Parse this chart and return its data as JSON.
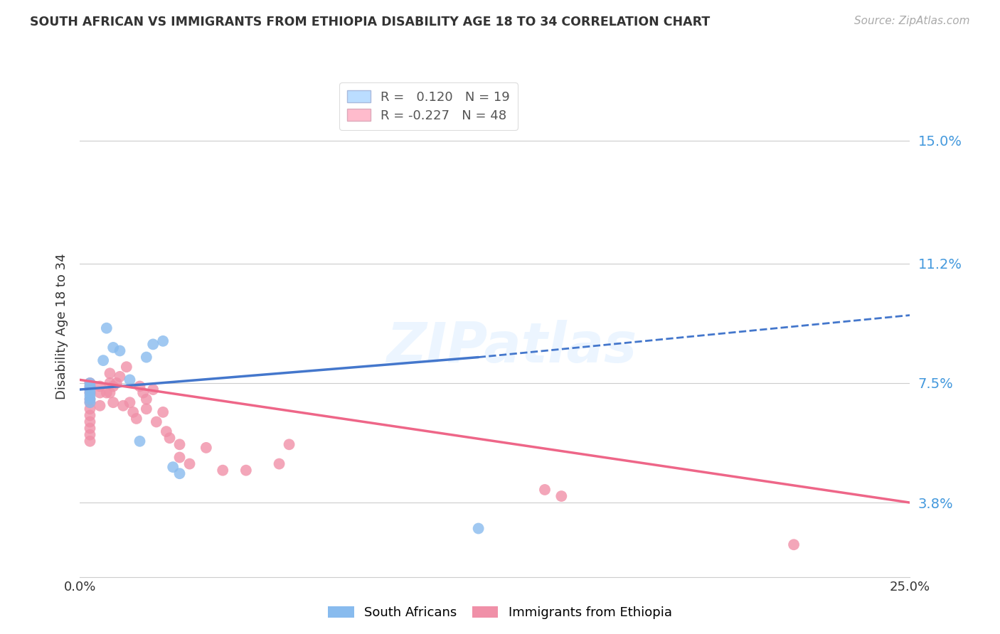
{
  "title": "SOUTH AFRICAN VS IMMIGRANTS FROM ETHIOPIA DISABILITY AGE 18 TO 34 CORRELATION CHART",
  "source": "Source: ZipAtlas.com",
  "ylabel": "Disability Age 18 to 34",
  "ytick_labels": [
    "3.8%",
    "7.5%",
    "11.2%",
    "15.0%"
  ],
  "ytick_values": [
    0.038,
    0.075,
    0.112,
    0.15
  ],
  "xlim": [
    0.0,
    0.25
  ],
  "ylim": [
    0.015,
    0.17
  ],
  "blue_color": "#88bbee",
  "pink_color": "#f090a8",
  "blue_line_color": "#4477cc",
  "pink_line_color": "#ee6688",
  "watermark": "ZIPatlas",
  "legend_box_color1": "#bbddff",
  "legend_box_color2": "#ffbbcc",
  "south_africans_x": [
    0.003,
    0.003,
    0.003,
    0.003,
    0.003,
    0.003,
    0.003,
    0.007,
    0.008,
    0.01,
    0.012,
    0.015,
    0.018,
    0.02,
    0.022,
    0.025,
    0.028,
    0.03,
    0.12
  ],
  "south_africans_y": [
    0.075,
    0.074,
    0.073,
    0.072,
    0.071,
    0.07,
    0.069,
    0.082,
    0.092,
    0.086,
    0.085,
    0.076,
    0.057,
    0.083,
    0.087,
    0.088,
    0.049,
    0.047,
    0.03
  ],
  "ethiopia_x": [
    0.003,
    0.003,
    0.003,
    0.003,
    0.003,
    0.003,
    0.003,
    0.003,
    0.003,
    0.003,
    0.003,
    0.003,
    0.006,
    0.006,
    0.006,
    0.008,
    0.009,
    0.009,
    0.009,
    0.01,
    0.01,
    0.011,
    0.012,
    0.013,
    0.014,
    0.015,
    0.016,
    0.017,
    0.018,
    0.019,
    0.02,
    0.02,
    0.022,
    0.023,
    0.025,
    0.026,
    0.027,
    0.03,
    0.03,
    0.033,
    0.038,
    0.043,
    0.05,
    0.06,
    0.063,
    0.215,
    0.14,
    0.145
  ],
  "ethiopia_y": [
    0.075,
    0.074,
    0.073,
    0.072,
    0.07,
    0.069,
    0.067,
    0.065,
    0.063,
    0.061,
    0.059,
    0.057,
    0.074,
    0.072,
    0.068,
    0.072,
    0.078,
    0.075,
    0.072,
    0.074,
    0.069,
    0.075,
    0.077,
    0.068,
    0.08,
    0.069,
    0.066,
    0.064,
    0.074,
    0.072,
    0.07,
    0.067,
    0.073,
    0.063,
    0.066,
    0.06,
    0.058,
    0.056,
    0.052,
    0.05,
    0.055,
    0.048,
    0.048,
    0.05,
    0.056,
    0.025,
    0.042,
    0.04
  ],
  "blue_line_x0": 0.0,
  "blue_line_x_solid_end": 0.12,
  "blue_line_x1": 0.25,
  "blue_line_y0": 0.073,
  "blue_line_y_solid_end": 0.083,
  "blue_line_y1": 0.096,
  "pink_line_x0": 0.0,
  "pink_line_x1": 0.25,
  "pink_line_y0": 0.076,
  "pink_line_y1": 0.038
}
